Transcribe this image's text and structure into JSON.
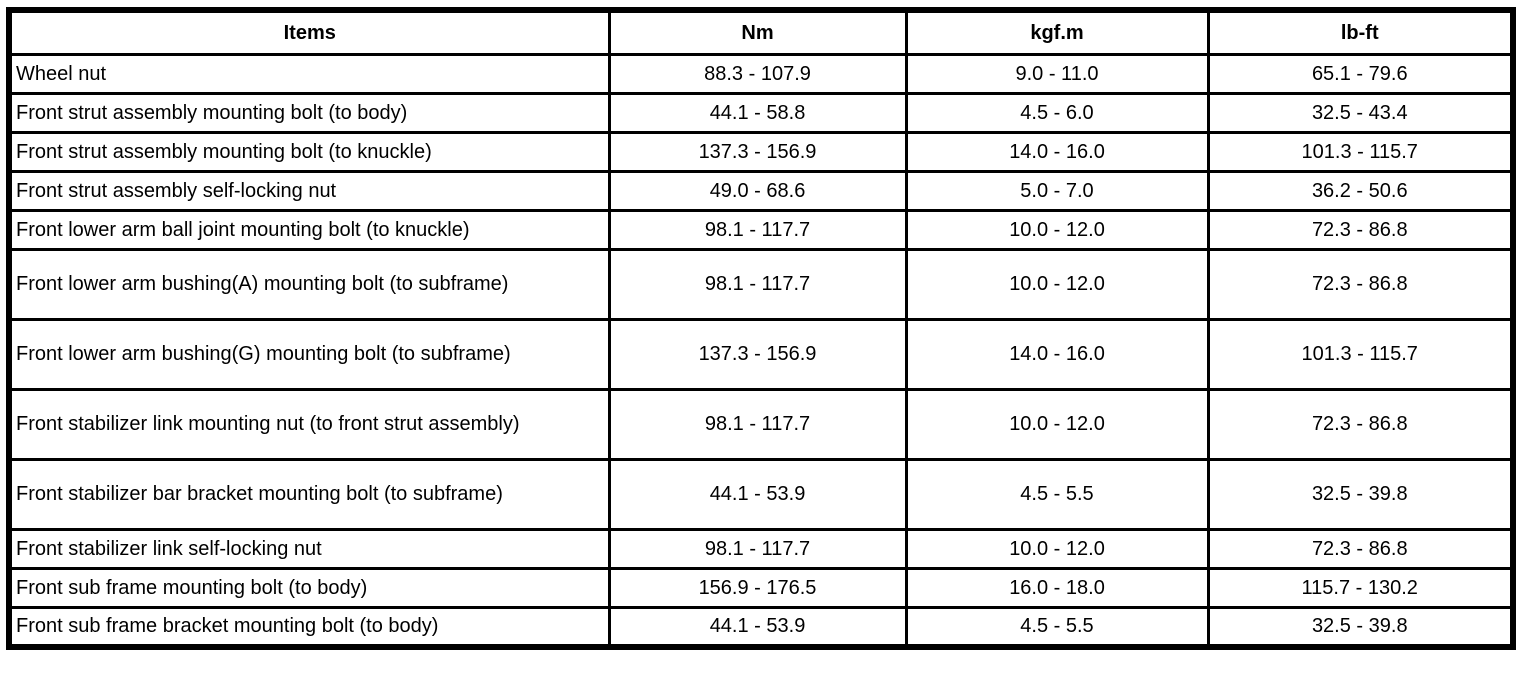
{
  "table": {
    "headers": {
      "items": "Items",
      "nm": "Nm",
      "kgfm": "kgf.m",
      "lbft": "lb-ft"
    },
    "rows": [
      {
        "item": "Wheel nut",
        "nm": "88.3 - 107.9",
        "kgfm": "9.0 - 11.0",
        "lbft": "65.1 - 79.6"
      },
      {
        "item": "Front strut assembly mounting bolt (to body)",
        "nm": "44.1 - 58.8",
        "kgfm": "4.5 - 6.0",
        "lbft": "32.5 - 43.4"
      },
      {
        "item": "Front strut assembly mounting bolt (to knuckle)",
        "nm": "137.3 - 156.9",
        "kgfm": "14.0 - 16.0",
        "lbft": "101.3 - 115.7"
      },
      {
        "item": "Front strut assembly self-locking nut",
        "nm": "49.0 - 68.6",
        "kgfm": "5.0 - 7.0",
        "lbft": "36.2 - 50.6"
      },
      {
        "item": "Front lower arm ball joint mounting bolt (to knuckle)",
        "nm": "98.1 - 117.7",
        "kgfm": "10.0 - 12.0",
        "lbft": "72.3 - 86.8"
      },
      {
        "item": "Front lower arm bushing(A) mounting bolt (to subframe)",
        "nm": "98.1 - 117.7",
        "kgfm": "10.0 - 12.0",
        "lbft": "72.3 - 86.8"
      },
      {
        "item": "Front lower arm bushing(G) mounting bolt (to subframe)",
        "nm": "137.3 - 156.9",
        "kgfm": "14.0 - 16.0",
        "lbft": "101.3 - 115.7"
      },
      {
        "item": "Front stabilizer link mounting nut (to front strut assembly)",
        "nm": "98.1 - 117.7",
        "kgfm": "10.0 - 12.0",
        "lbft": "72.3 - 86.8"
      },
      {
        "item": "Front stabilizer bar bracket mounting bolt (to subframe)",
        "nm": "44.1 - 53.9",
        "kgfm": "4.5 - 5.5",
        "lbft": "32.5 - 39.8"
      },
      {
        "item": "Front stabilizer link self-locking nut",
        "nm": "98.1 - 117.7",
        "kgfm": "10.0 - 12.0",
        "lbft": "72.3 - 86.8"
      },
      {
        "item": "Front sub frame mounting bolt (to body)",
        "nm": "156.9 - 176.5",
        "kgfm": "16.0 - 18.0",
        "lbft": "115.7 - 130.2"
      },
      {
        "item": "Front sub frame bracket mounting bolt (to body)",
        "nm": "44.1 - 53.9",
        "kgfm": "4.5 - 5.5",
        "lbft": "32.5 - 39.8"
      }
    ]
  }
}
